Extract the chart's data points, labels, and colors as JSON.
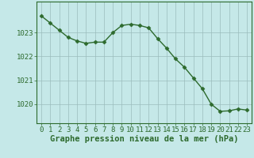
{
  "x": [
    0,
    1,
    2,
    3,
    4,
    5,
    6,
    7,
    8,
    9,
    10,
    11,
    12,
    13,
    14,
    15,
    16,
    17,
    18,
    19,
    20,
    21,
    22,
    23
  ],
  "y": [
    1023.7,
    1023.4,
    1023.1,
    1022.8,
    1022.65,
    1022.55,
    1022.6,
    1022.6,
    1023.0,
    1023.3,
    1023.35,
    1023.3,
    1023.2,
    1022.75,
    1022.35,
    1021.9,
    1021.55,
    1021.1,
    1020.65,
    1020.0,
    1019.7,
    1019.72,
    1019.8,
    1019.75
  ],
  "line_color": "#2d6a2d",
  "marker": "D",
  "marker_size": 2.5,
  "bg_color": "#c5e8e8",
  "grid_color": "#9bbcbc",
  "ylabel_ticks": [
    1020,
    1021,
    1022,
    1023
  ],
  "ylim": [
    1019.2,
    1024.3
  ],
  "xlim": [
    -0.5,
    23.5
  ],
  "xlabel": "Graphe pression niveau de la mer (hPa)",
  "xlabel_fontsize": 7.5,
  "tick_fontsize": 6.5,
  "line_width": 1.0
}
